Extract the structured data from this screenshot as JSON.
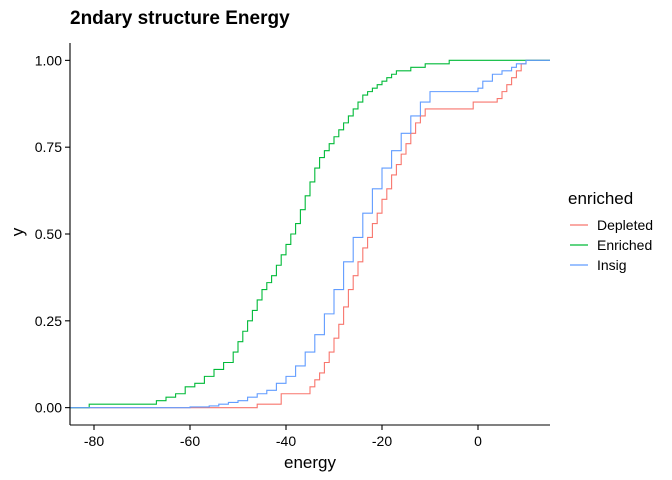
{
  "chart_data": {
    "type": "line",
    "title": "2ndary structure Energy",
    "xlabel": "energy",
    "ylabel": "y",
    "xlim": [
      -85,
      15
    ],
    "ylim": [
      -0.05,
      1.05
    ],
    "x_ticks": [
      -80,
      -60,
      -40,
      -20,
      0
    ],
    "x_tick_labels": [
      "-80",
      "-60",
      "-40",
      "-20",
      "0"
    ],
    "y_ticks": [
      0,
      0.25,
      0.5,
      0.75,
      1
    ],
    "y_tick_labels": [
      "0.00",
      "0.25",
      "0.50",
      "0.75",
      "1.00"
    ],
    "grid": false,
    "legend": {
      "title": "enriched",
      "placement": "right"
    },
    "series": [
      {
        "name": "Depleted",
        "color": "#F8766D",
        "points": [
          [
            -85,
            0
          ],
          [
            -46,
            0
          ],
          [
            -46,
            0.01
          ],
          [
            -41,
            0.01
          ],
          [
            -41,
            0.04
          ],
          [
            -36,
            0.04
          ],
          [
            -35,
            0.06
          ],
          [
            -34,
            0.08
          ],
          [
            -33,
            0.1
          ],
          [
            -32,
            0.13
          ],
          [
            -31,
            0.16
          ],
          [
            -30,
            0.2
          ],
          [
            -29,
            0.24
          ],
          [
            -28,
            0.29
          ],
          [
            -27,
            0.34
          ],
          [
            -26,
            0.38
          ],
          [
            -25,
            0.42
          ],
          [
            -24,
            0.46
          ],
          [
            -23,
            0.49
          ],
          [
            -22,
            0.53
          ],
          [
            -21,
            0.56
          ],
          [
            -20,
            0.6
          ],
          [
            -19,
            0.63
          ],
          [
            -18,
            0.67
          ],
          [
            -17,
            0.7
          ],
          [
            -16,
            0.73
          ],
          [
            -15,
            0.76
          ],
          [
            -14,
            0.79
          ],
          [
            -13,
            0.82
          ],
          [
            -12,
            0.84
          ],
          [
            -11,
            0.86
          ],
          [
            -10,
            0.86
          ],
          [
            -1,
            0.86
          ],
          [
            -1,
            0.88
          ],
          [
            2,
            0.88
          ],
          [
            4,
            0.89
          ],
          [
            5,
            0.91
          ],
          [
            6,
            0.93
          ],
          [
            7,
            0.95
          ],
          [
            8,
            0.97
          ],
          [
            9,
            0.99
          ],
          [
            10,
            1.0
          ],
          [
            15,
            1.0
          ]
        ]
      },
      {
        "name": "Enriched",
        "color": "#00BA38",
        "points": [
          [
            -85,
            0
          ],
          [
            -81,
            0
          ],
          [
            -81,
            0.01
          ],
          [
            -68,
            0.01
          ],
          [
            -67,
            0.02
          ],
          [
            -65,
            0.03
          ],
          [
            -63,
            0.04
          ],
          [
            -61,
            0.06
          ],
          [
            -59,
            0.07
          ],
          [
            -57,
            0.09
          ],
          [
            -55,
            0.11
          ],
          [
            -53,
            0.13
          ],
          [
            -51,
            0.16
          ],
          [
            -50,
            0.19
          ],
          [
            -49,
            0.22
          ],
          [
            -48,
            0.25
          ],
          [
            -47,
            0.28
          ],
          [
            -46,
            0.31
          ],
          [
            -45,
            0.34
          ],
          [
            -44,
            0.36
          ],
          [
            -43,
            0.38
          ],
          [
            -42,
            0.41
          ],
          [
            -41,
            0.44
          ],
          [
            -40,
            0.47
          ],
          [
            -39,
            0.5
          ],
          [
            -38,
            0.53
          ],
          [
            -37,
            0.57
          ],
          [
            -36,
            0.61
          ],
          [
            -35,
            0.65
          ],
          [
            -34,
            0.69
          ],
          [
            -33,
            0.72
          ],
          [
            -32,
            0.74
          ],
          [
            -31,
            0.76
          ],
          [
            -30,
            0.78
          ],
          [
            -29,
            0.8
          ],
          [
            -28,
            0.82
          ],
          [
            -27,
            0.84
          ],
          [
            -26,
            0.86
          ],
          [
            -25,
            0.88
          ],
          [
            -24,
            0.9
          ],
          [
            -23,
            0.91
          ],
          [
            -22,
            0.92
          ],
          [
            -21,
            0.93
          ],
          [
            -20,
            0.94
          ],
          [
            -19,
            0.95
          ],
          [
            -18,
            0.96
          ],
          [
            -17,
            0.97
          ],
          [
            -16,
            0.97
          ],
          [
            -14,
            0.98
          ],
          [
            -11,
            0.99
          ],
          [
            -6,
            0.99
          ],
          [
            -6,
            1.0
          ],
          [
            15,
            1.0
          ]
        ]
      },
      {
        "name": "Insig",
        "color": "#619CFF",
        "points": [
          [
            -85,
            0
          ],
          [
            -65,
            0
          ],
          [
            -60,
            0.002
          ],
          [
            -56,
            0.005
          ],
          [
            -54,
            0.01
          ],
          [
            -52,
            0.015
          ],
          [
            -50,
            0.02
          ],
          [
            -48,
            0.03
          ],
          [
            -46,
            0.04
          ],
          [
            -44,
            0.05
          ],
          [
            -42,
            0.07
          ],
          [
            -40,
            0.09
          ],
          [
            -38,
            0.12
          ],
          [
            -36,
            0.16
          ],
          [
            -34,
            0.21
          ],
          [
            -32,
            0.27
          ],
          [
            -30,
            0.34
          ],
          [
            -28,
            0.42
          ],
          [
            -26,
            0.49
          ],
          [
            -24,
            0.56
          ],
          [
            -22,
            0.63
          ],
          [
            -20,
            0.69
          ],
          [
            -18,
            0.74
          ],
          [
            -16,
            0.79
          ],
          [
            -14,
            0.84
          ],
          [
            -12,
            0.88
          ],
          [
            -10,
            0.91
          ],
          [
            -6,
            0.91
          ],
          [
            -1,
            0.91
          ],
          [
            0,
            0.92
          ],
          [
            1,
            0.94
          ],
          [
            3,
            0.96
          ],
          [
            5,
            0.97
          ],
          [
            7,
            0.98
          ],
          [
            8,
            0.99
          ],
          [
            10,
            1.0
          ],
          [
            15,
            1.0
          ]
        ]
      }
    ]
  }
}
